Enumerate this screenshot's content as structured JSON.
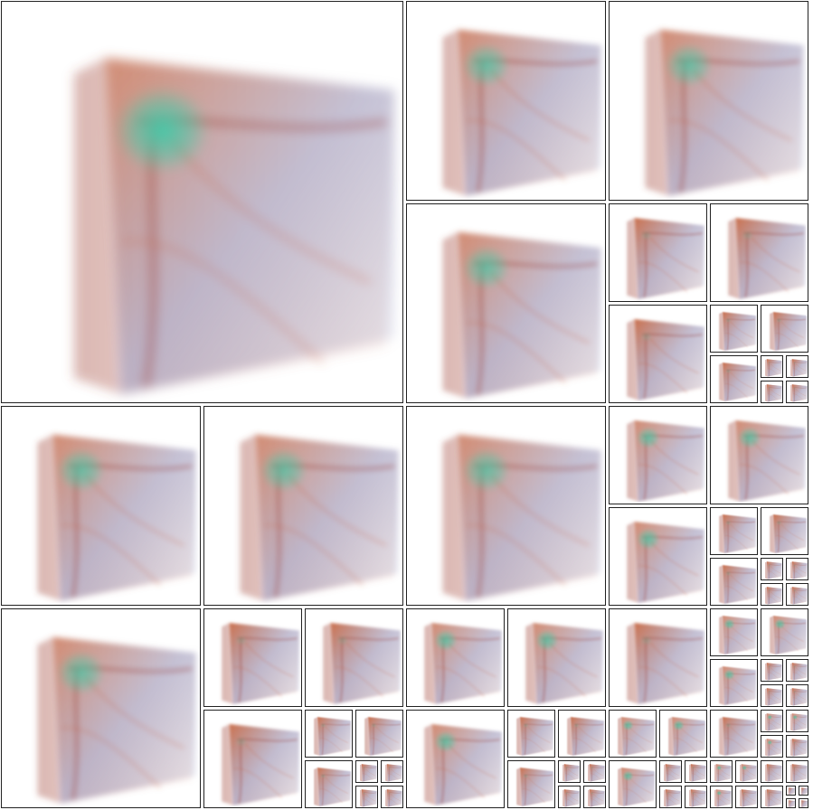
{
  "palette": {
    "frame": "#222222",
    "background": "#ffffff",
    "tissue_orange": "#c8643c",
    "tissue_red": "#a0463a",
    "haze_lavender": "#9ba0c8",
    "glow_cyan": "#46c8a8"
  },
  "subject": "volume-rendering-thumbnails",
  "levels": [
    {
      "level": 0,
      "label": "",
      "glow": 1.0,
      "orange": 0.55
    },
    {
      "level": 1,
      "label": "",
      "glow": 0.8,
      "orange": 0.6
    },
    {
      "level": 2,
      "label": "",
      "glow": 0.4,
      "orange": 0.85
    }
  ]
}
